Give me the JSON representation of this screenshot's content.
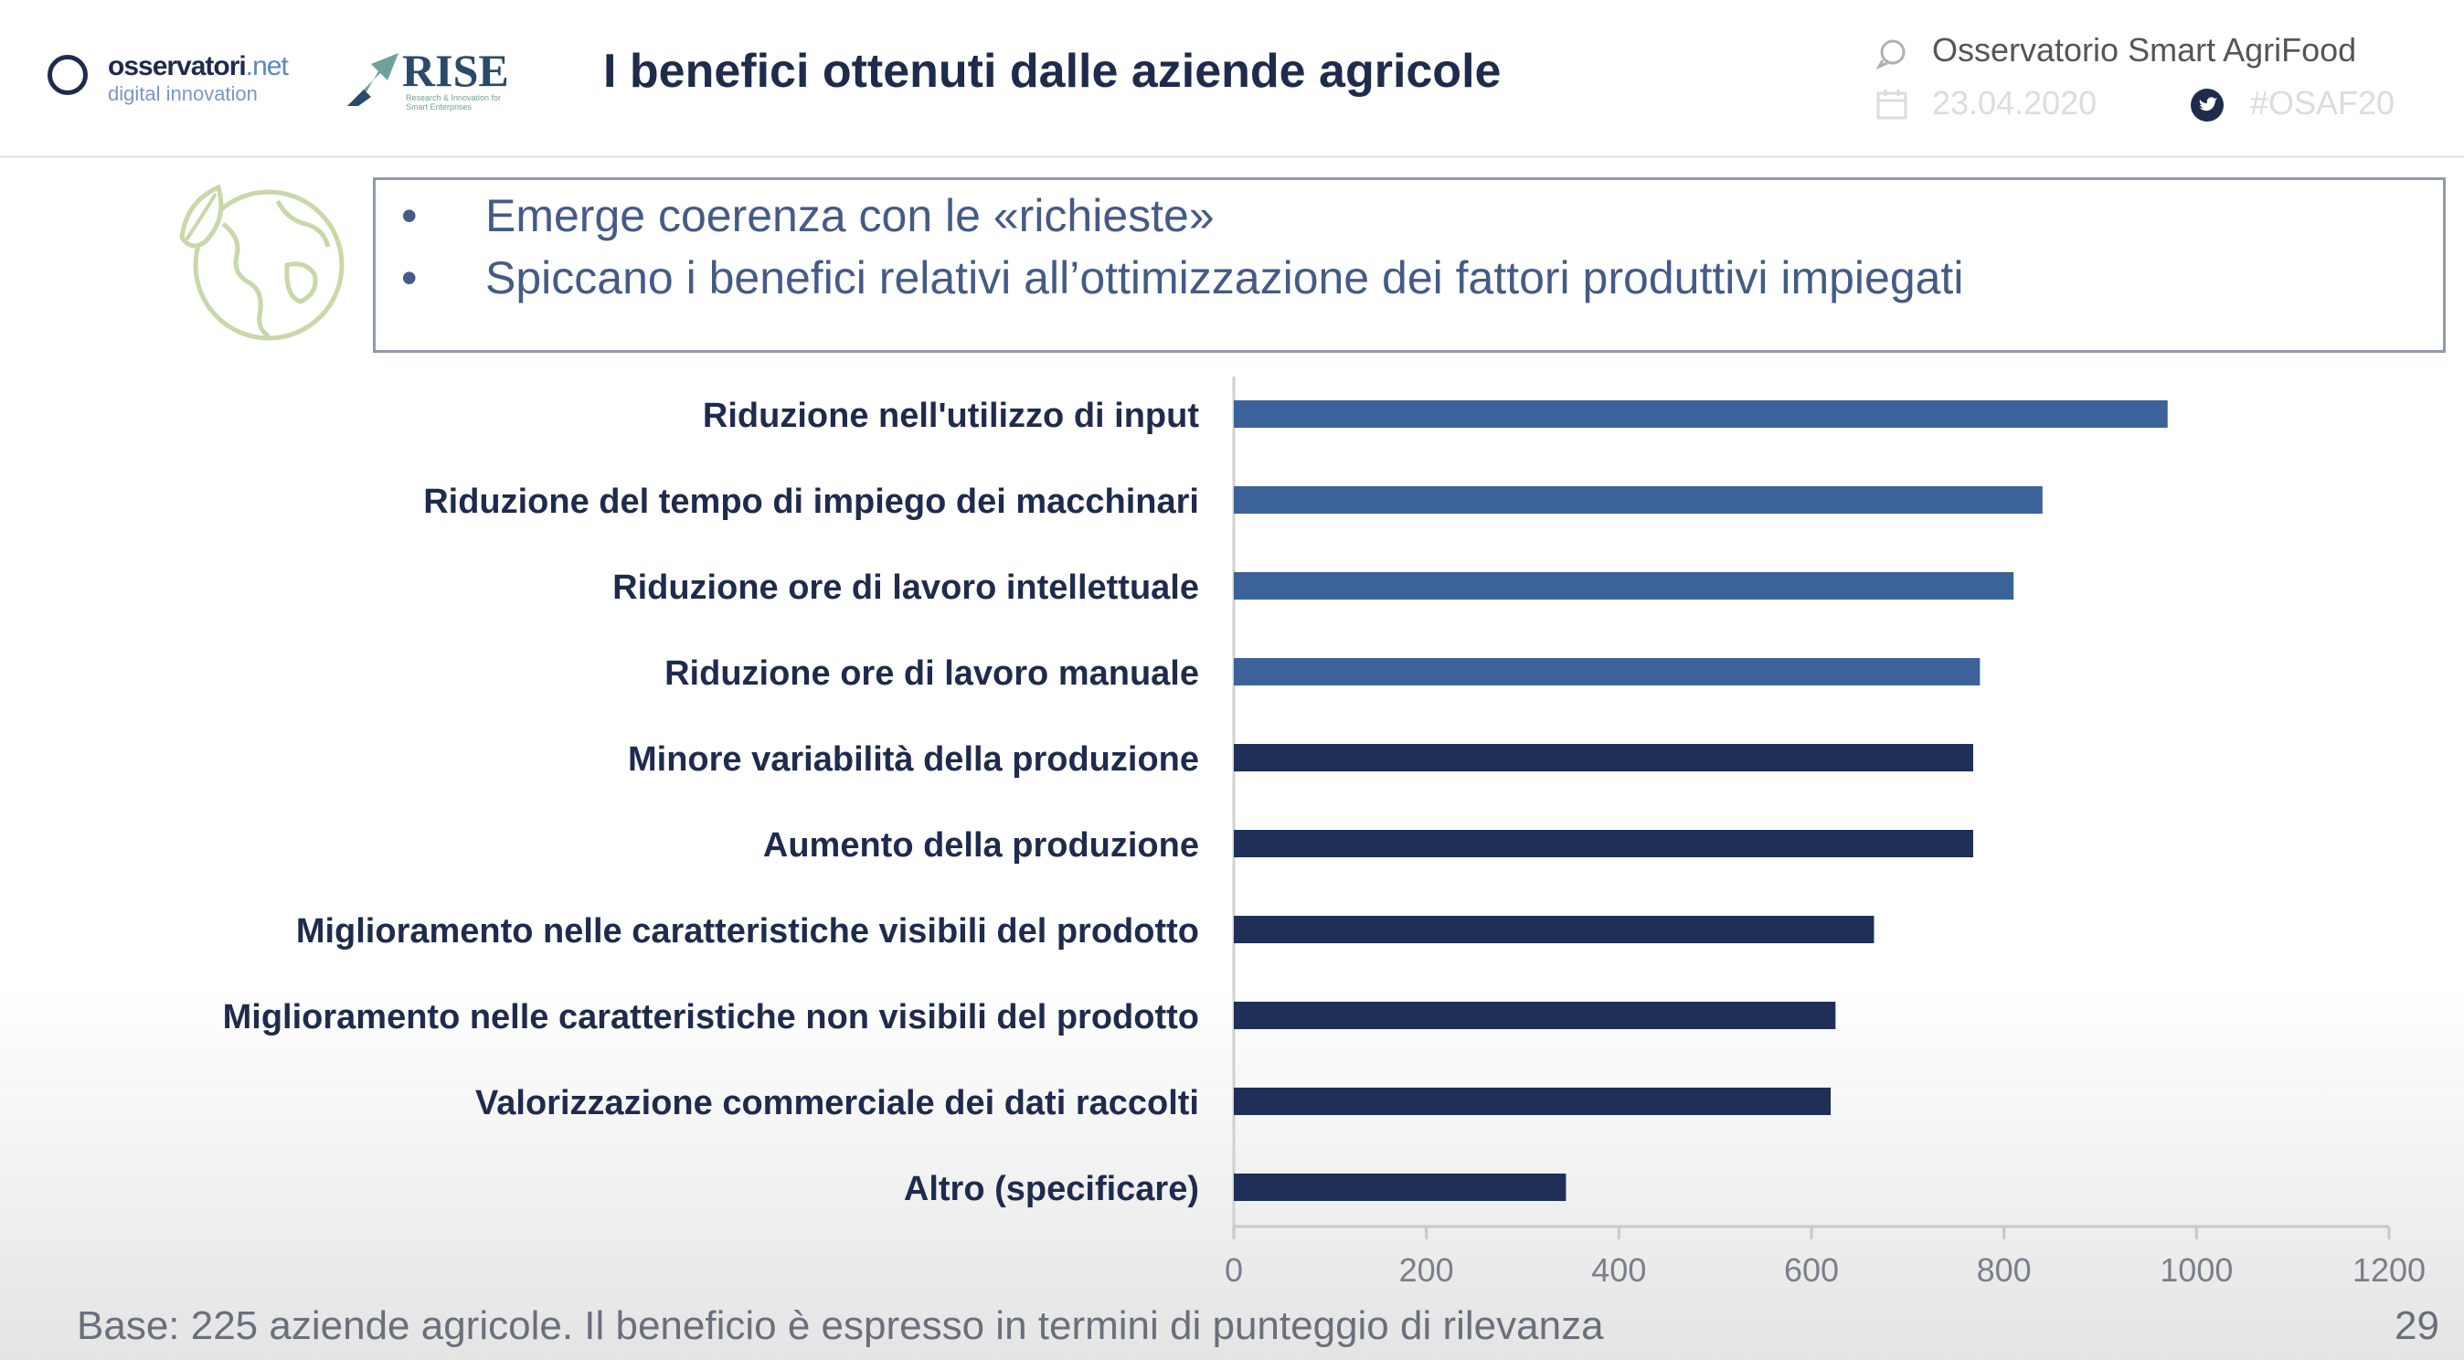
{
  "header": {
    "logo1_main": "osservatori",
    "logo1_net": ".net",
    "logo1_sub": "digital innovation",
    "logo2_main": "RISE",
    "logo2_sub": "Research & Innovation for Smart Enterprises",
    "title": "I benefici ottenuti dalle aziende agricole",
    "observatory": "Osservatorio Smart AgriFood",
    "date": "23.04.2020",
    "hashtag": "#OSAF20"
  },
  "callout": {
    "bullets": [
      "Emerge coerenza con le «richieste»",
      "Spiccano i benefici relativi all’ottimizzazione dei fattori produttivi impiegati"
    ]
  },
  "footer": {
    "note": "Base: 225 aziende agricole. Il beneficio è espresso in termini di punteggio di rilevanza",
    "page": "29"
  },
  "colors": {
    "bar_light": "#3b6399",
    "bar_dark": "#1f2f57",
    "title": "#1f2b4d",
    "callout_border": "#8e9aad",
    "earth_icon": "#c8d8a8"
  },
  "chart_data": {
    "type": "bar",
    "orientation": "horizontal",
    "categories": [
      "Riduzione nell'utilizzo di input",
      "Riduzione del tempo di impiego dei macchinari",
      "Riduzione ore di lavoro intellettuale",
      "Riduzione ore di lavoro manuale",
      "Minore variabilità della produzione",
      "Aumento della produzione",
      "Miglioramento nelle caratteristiche visibili del prodotto",
      "Miglioramento nelle caratteristiche non visibili del prodotto",
      "Valorizzazione commerciale dei dati raccolti",
      "Altro (specificare)"
    ],
    "values": [
      970,
      840,
      810,
      775,
      768,
      768,
      665,
      625,
      620,
      345
    ],
    "bar_shade": [
      "light",
      "light",
      "light",
      "light",
      "dark",
      "dark",
      "dark",
      "dark",
      "dark",
      "dark"
    ],
    "xlim": [
      0,
      1200
    ],
    "xticks": [
      0,
      200,
      400,
      600,
      800,
      1000,
      1200
    ],
    "grid": false,
    "title": "",
    "xlabel": "",
    "ylabel": ""
  }
}
